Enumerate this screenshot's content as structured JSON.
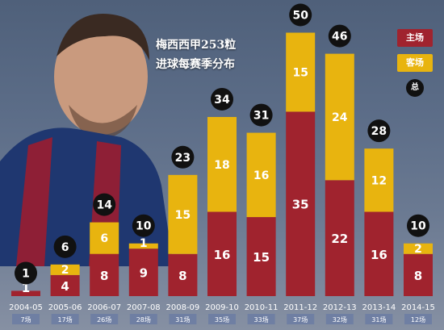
{
  "title_line1": "梅西西甲253粒",
  "title_line2": "进球每赛季分布",
  "legend": {
    "home": "主场",
    "away": "客场",
    "total": "总"
  },
  "colors": {
    "home": "#a0232e",
    "away": "#e8b40f",
    "total_circle": "#111111",
    "season_box": "#6f7fa3"
  },
  "chart_data": {
    "type": "bar",
    "stacked": true,
    "categories": [
      "2004-05",
      "2005-06",
      "2006-07",
      "2007-08",
      "2008-09",
      "2009-10",
      "2010-11",
      "2011-12",
      "2012-13",
      "2013-14",
      "2014-15"
    ],
    "matches": [
      "7场",
      "17场",
      "26场",
      "28场",
      "31场",
      "35场",
      "33场",
      "37场",
      "32场",
      "31场",
      "12场"
    ],
    "series": [
      {
        "name": "主场",
        "values": [
          1,
          4,
          8,
          9,
          8,
          16,
          15,
          35,
          22,
          16,
          8
        ]
      },
      {
        "name": "客场",
        "values": [
          0,
          2,
          6,
          1,
          15,
          18,
          16,
          15,
          24,
          12,
          2
        ]
      }
    ],
    "totals": [
      1,
      6,
      14,
      10,
      23,
      34,
      31,
      50,
      46,
      28,
      10
    ],
    "ylim": [
      0,
      50
    ]
  }
}
